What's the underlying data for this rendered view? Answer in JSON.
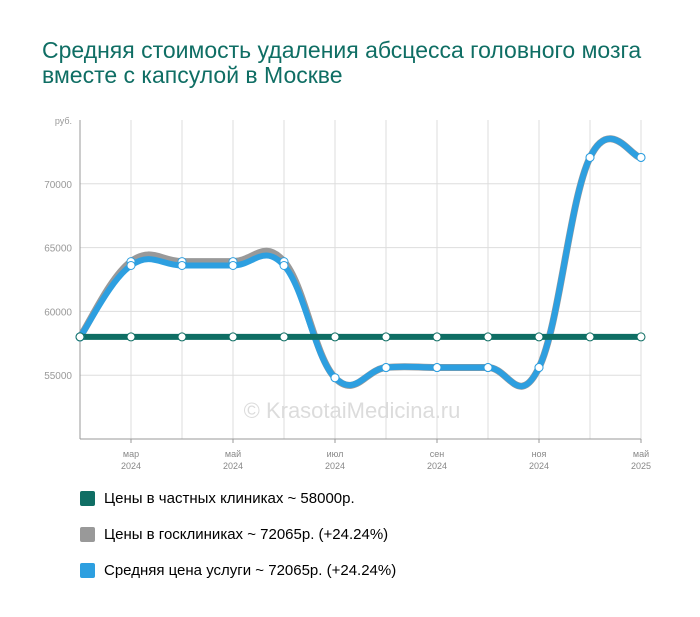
{
  "title": "Средняя стоимость удаления абсцесса головного мозга вместе с капсулой в Москве",
  "watermark": "© KrasotaiMedicina.ru",
  "chart_data": {
    "type": "line",
    "y_unit_label": "руб.",
    "ylim": [
      50000,
      75000
    ],
    "yticks": [
      55000,
      60000,
      65000,
      70000
    ],
    "ytick_labels": [
      "55000",
      "60000",
      "65000",
      "70000"
    ],
    "x_ticks": [
      {
        "month": "мар",
        "year": "2024"
      },
      {
        "month": "май",
        "year": "2024"
      },
      {
        "month": "июл",
        "year": "2024"
      },
      {
        "month": "сен",
        "year": "2024"
      },
      {
        "month": "ноя",
        "year": "2024"
      },
      {
        "month": "май",
        "year": "2025"
      }
    ],
    "grid": true,
    "legend_position": "bottom",
    "series": [
      {
        "name": "Цены в частных клиниках ~ 58000р.",
        "color": "#0f6e64",
        "values": [
          58000,
          58000,
          58000,
          58000,
          58000,
          58000,
          58000,
          58000,
          58000,
          58000,
          58000,
          58000
        ]
      },
      {
        "name": "Цены в госклиниках ~ 72065р. (+24.24%)",
        "color": "#999999",
        "values": [
          58000,
          63900,
          63900,
          63900,
          63900,
          54800,
          55600,
          55600,
          55600,
          55600,
          72065,
          72065
        ]
      },
      {
        "name": "Средняя цена услуги ~ 72065р. (+24.24%)",
        "color": "#2d9fe0",
        "values": [
          58000,
          63600,
          63600,
          63600,
          63600,
          54800,
          55600,
          55600,
          55600,
          55600,
          72065,
          72065
        ]
      }
    ]
  }
}
